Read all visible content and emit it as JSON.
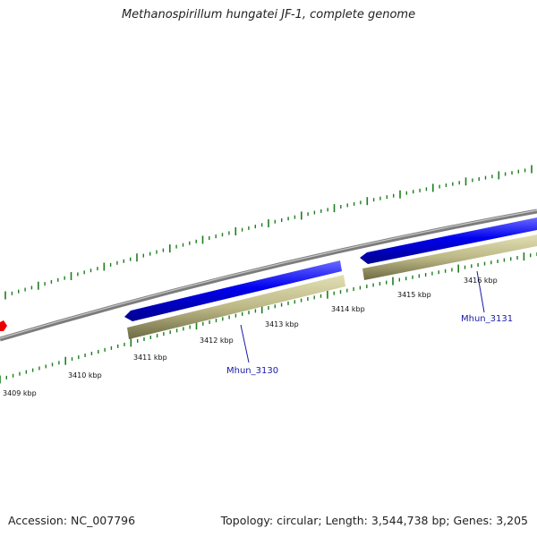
{
  "title": "Methanospirillum hungatei JF-1, complete genome",
  "footer": {
    "accession": "Accession: NC_007796",
    "summary": "Topology: circular; Length: 3,544,738 bp; Genes: 3,205"
  },
  "ticks": [
    {
      "label": "3409 kbp"
    },
    {
      "label": "3410 kbp"
    },
    {
      "label": "3411 kbp"
    },
    {
      "label": "3412 kbp"
    },
    {
      "label": "3413 kbp"
    },
    {
      "label": "3414 kbp"
    },
    {
      "label": "3415 kbp"
    },
    {
      "label": "3416 kbp"
    }
  ],
  "genes": [
    {
      "label": "Mhun_3130",
      "color": "#0000ee",
      "cds_color": "#bdb987"
    },
    {
      "label": "Mhun_3131",
      "color": "#0000ee",
      "cds_color": "#bdb987"
    }
  ],
  "colors": {
    "backbone": "#8c8c8c",
    "tick": "#1e7e1e",
    "feature_red": "#ee0000"
  }
}
